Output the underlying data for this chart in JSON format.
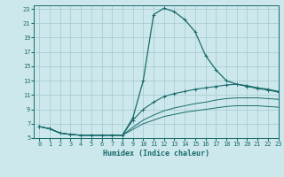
{
  "xlabel": "Humidex (Indice chaleur)",
  "background_color": "#cde8ec",
  "grid_color": "#aacdd4",
  "line_color": "#1a6b6b",
  "xlim": [
    -0.5,
    23
  ],
  "ylim": [
    5,
    23.5
  ],
  "yticks": [
    5,
    7,
    9,
    11,
    13,
    15,
    17,
    19,
    21,
    23
  ],
  "xticks": [
    0,
    1,
    2,
    3,
    4,
    5,
    6,
    7,
    8,
    9,
    10,
    11,
    12,
    13,
    14,
    15,
    16,
    17,
    18,
    19,
    20,
    21,
    22,
    23
  ],
  "line1_x": [
    0,
    1,
    2,
    3,
    4,
    5,
    6,
    7,
    8,
    9,
    10,
    11,
    12,
    13,
    14,
    15,
    16,
    17,
    18,
    19,
    20,
    21,
    22,
    23
  ],
  "line1_y": [
    6.6,
    6.3,
    5.7,
    5.5,
    5.4,
    5.4,
    5.4,
    5.4,
    5.4,
    7.8,
    13.0,
    22.2,
    23.1,
    22.6,
    21.5,
    19.8,
    16.5,
    14.5,
    13.0,
    12.5,
    12.3,
    12.0,
    11.8,
    11.5
  ],
  "line2_x": [
    0,
    1,
    2,
    3,
    4,
    5,
    6,
    7,
    8,
    9,
    10,
    11,
    12,
    13,
    14,
    15,
    16,
    17,
    18,
    19,
    20,
    21,
    22,
    23
  ],
  "line2_y": [
    6.6,
    6.3,
    5.7,
    5.5,
    5.4,
    5.4,
    5.4,
    5.4,
    5.4,
    7.5,
    9.0,
    10.0,
    10.8,
    11.2,
    11.5,
    11.8,
    12.0,
    12.2,
    12.4,
    12.5,
    12.2,
    11.9,
    11.7,
    11.4
  ],
  "line3_x": [
    0,
    1,
    2,
    3,
    4,
    5,
    6,
    7,
    8,
    9,
    10,
    11,
    12,
    13,
    14,
    15,
    16,
    17,
    18,
    19,
    20,
    21,
    22,
    23
  ],
  "line3_y": [
    6.6,
    6.3,
    5.7,
    5.5,
    5.4,
    5.4,
    5.4,
    5.4,
    5.4,
    6.5,
    7.5,
    8.2,
    8.8,
    9.2,
    9.5,
    9.8,
    10.0,
    10.3,
    10.5,
    10.6,
    10.6,
    10.6,
    10.5,
    10.4
  ],
  "line4_x": [
    0,
    1,
    2,
    3,
    4,
    5,
    6,
    7,
    8,
    9,
    10,
    11,
    12,
    13,
    14,
    15,
    16,
    17,
    18,
    19,
    20,
    21,
    22,
    23
  ],
  "line4_y": [
    6.6,
    6.3,
    5.7,
    5.5,
    5.4,
    5.4,
    5.4,
    5.4,
    5.4,
    6.2,
    7.0,
    7.5,
    8.0,
    8.3,
    8.6,
    8.8,
    9.0,
    9.2,
    9.4,
    9.5,
    9.5,
    9.5,
    9.4,
    9.3
  ]
}
